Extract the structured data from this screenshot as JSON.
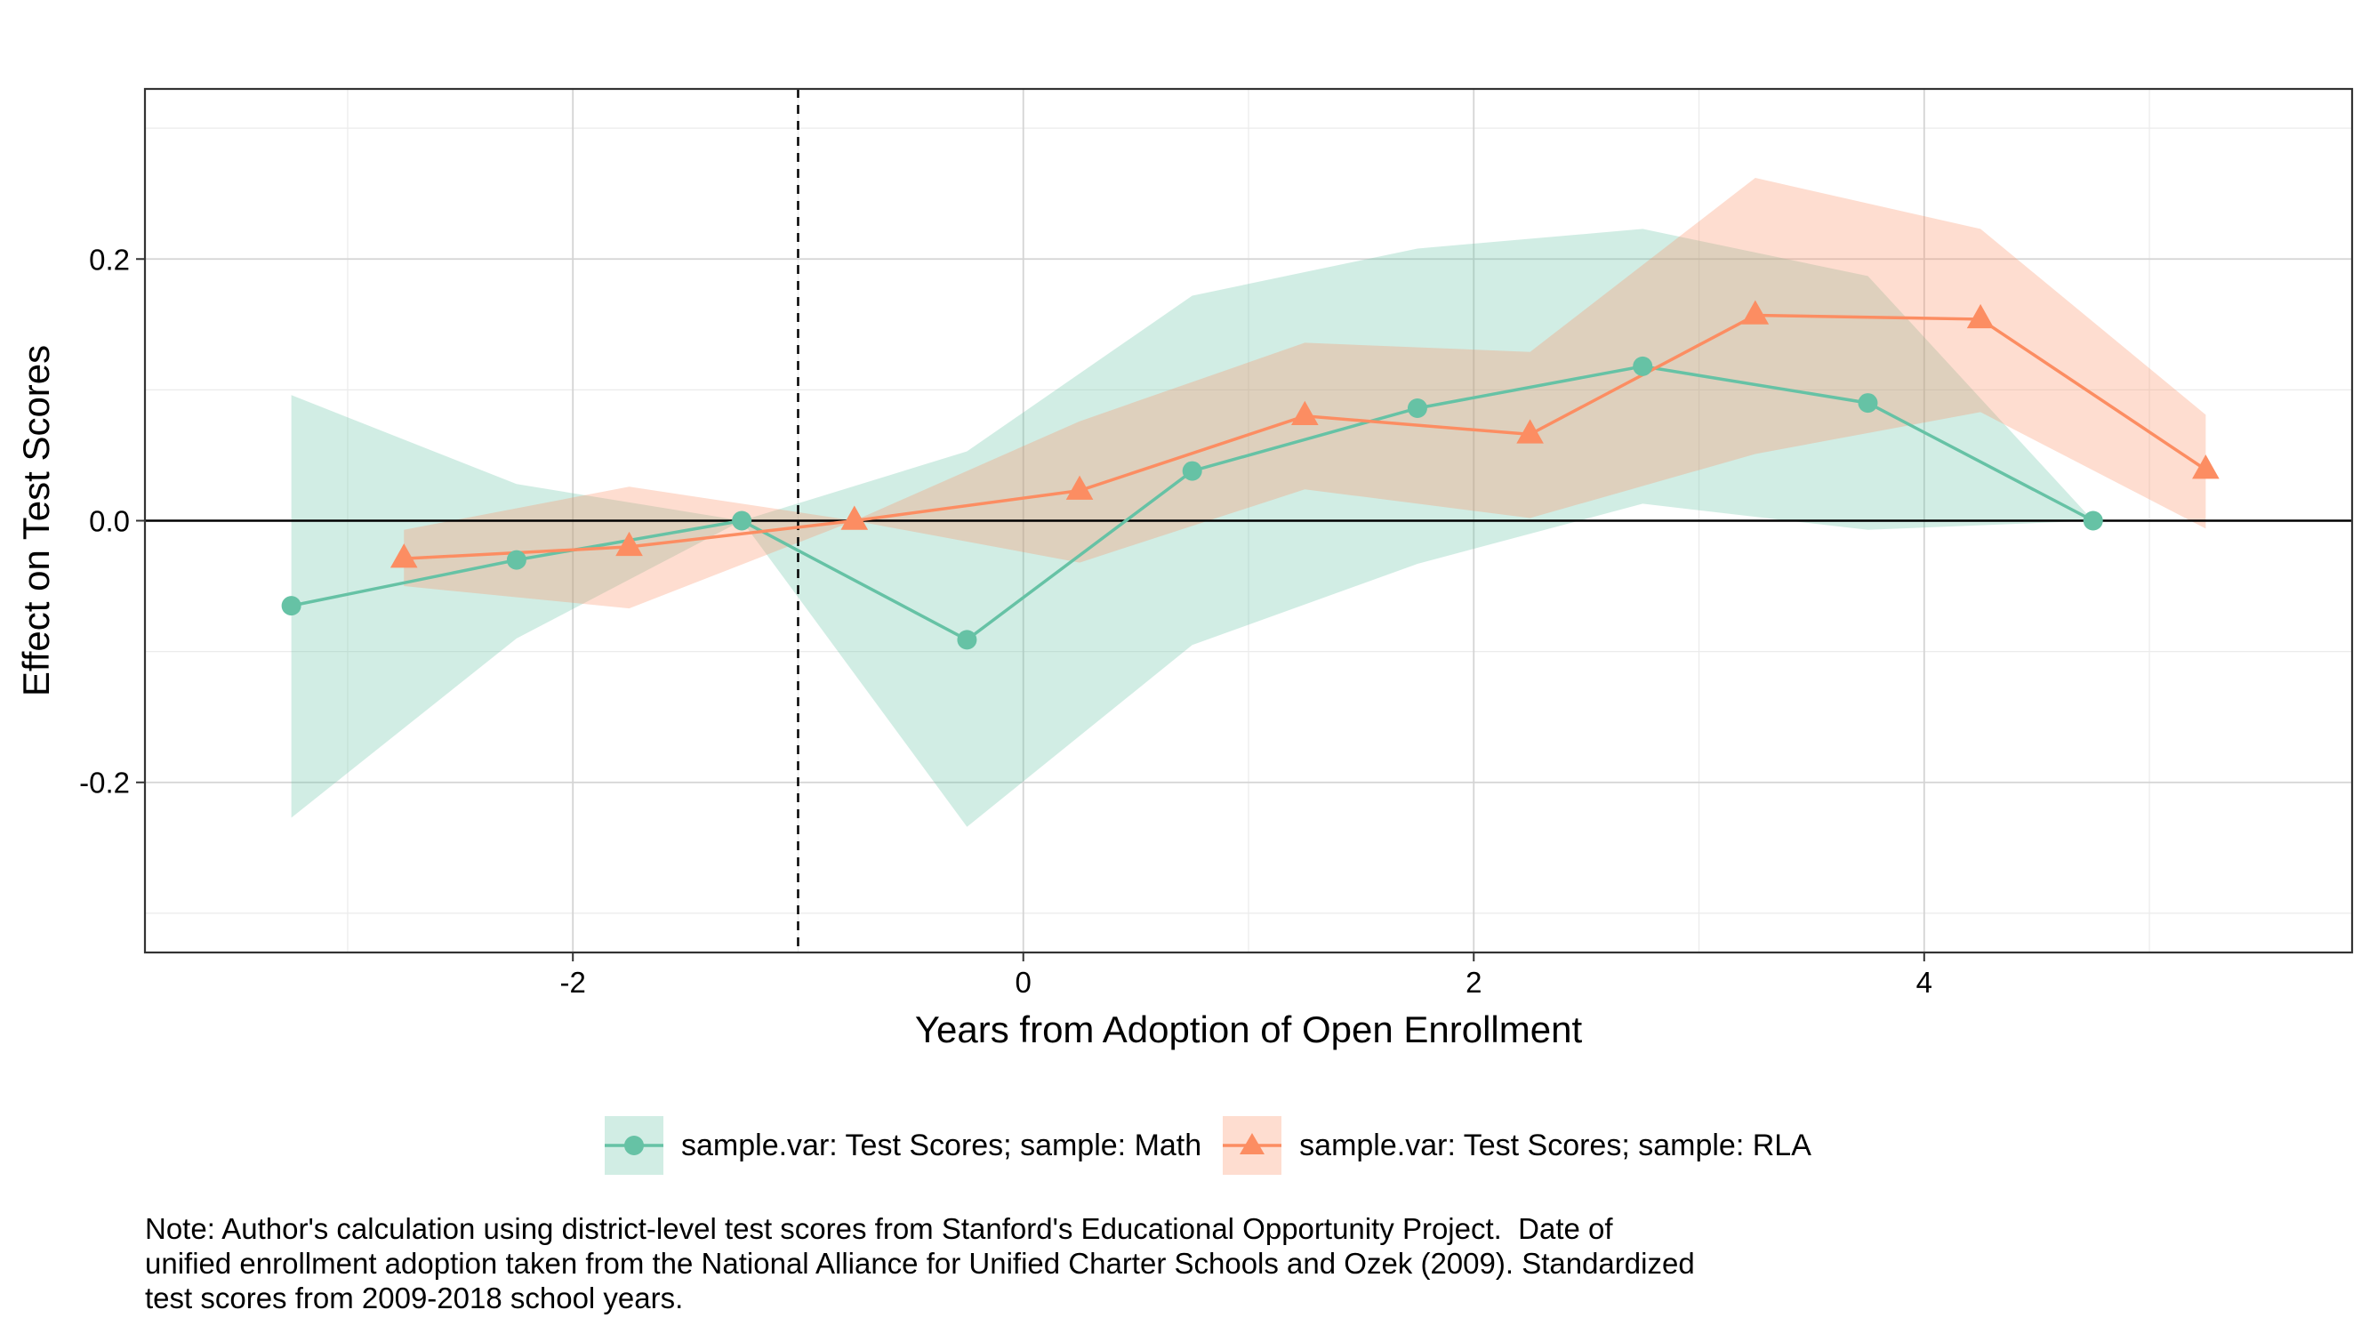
{
  "chart_data": {
    "type": "line",
    "title": "",
    "xlabel": "Years from Adoption of Open Enrollment",
    "ylabel": "Effect on Test Scores",
    "xlim": [
      -3.9,
      5.9
    ],
    "ylim": [
      -0.33,
      0.33
    ],
    "x_ticks": [
      -2,
      0,
      2,
      4
    ],
    "x_tick_labels": [
      "-2",
      "0",
      "2",
      "4"
    ],
    "y_ticks": [
      -0.2,
      0.0,
      0.2
    ],
    "y_tick_labels": [
      "-0.2",
      "0.0",
      "0.2"
    ],
    "grid": true,
    "reference_lines": {
      "horizontal_y": 0.0,
      "vertical_dashed_x": -1
    },
    "legend_position": "bottom",
    "series": [
      {
        "name": "sample.var: Test Scores; sample: Math",
        "color": "#66c2a5",
        "fill_color": "#66c2a5",
        "marker": "circle",
        "x": [
          -3,
          -2,
          -1,
          0,
          1,
          2,
          3,
          4,
          5
        ],
        "values": [
          -0.065,
          -0.03,
          0.0,
          -0.091,
          0.038,
          0.086,
          0.118,
          0.09,
          0.0
        ],
        "ci_lower": [
          -0.227,
          -0.09,
          0.0,
          -0.234,
          -0.095,
          -0.033,
          0.013,
          -0.007,
          0.0
        ],
        "ci_upper": [
          0.096,
          0.028,
          0.0,
          0.053,
          0.172,
          0.208,
          0.223,
          0.187,
          0.0
        ]
      },
      {
        "name": "sample.var: Test Scores; sample: RLA",
        "color": "#fc8d62",
        "fill_color": "#fc8d62",
        "marker": "triangle",
        "x": [
          -3,
          -2,
          -1,
          0,
          1,
          2,
          3,
          4,
          5
        ],
        "values": [
          -0.029,
          -0.02,
          0.0,
          0.023,
          0.08,
          0.066,
          0.157,
          0.154,
          0.039
        ],
        "ci_lower": [
          -0.05,
          -0.067,
          0.0,
          -0.032,
          0.024,
          0.002,
          0.051,
          0.083,
          -0.006
        ],
        "ci_upper": [
          -0.007,
          0.026,
          0.0,
          0.076,
          0.136,
          0.129,
          0.262,
          0.223,
          0.081
        ]
      }
    ]
  },
  "note": {
    "lines": [
      "Note: Author's calculation using district-level test scores from Stanford's Educational Opportunity Project.  Date of",
      "unified enrollment adoption taken from the National Alliance for Unified Charter Schools and Ozek (2009). Standardized",
      "test scores from 2009-2018 school years."
    ]
  }
}
